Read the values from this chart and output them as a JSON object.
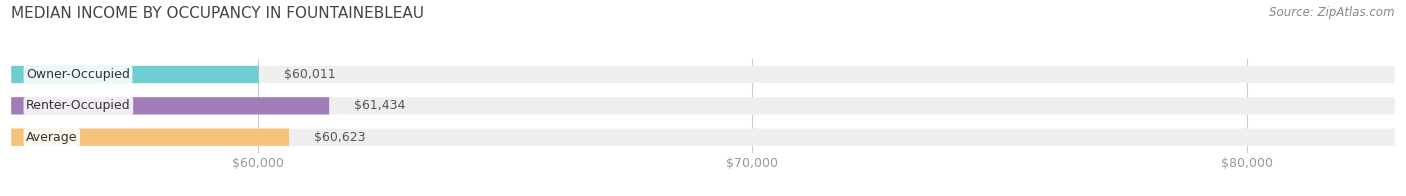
{
  "title": "MEDIAN INCOME BY OCCUPANCY IN FOUNTAINEBLEAU",
  "source": "Source: ZipAtlas.com",
  "categories": [
    "Owner-Occupied",
    "Renter-Occupied",
    "Average"
  ],
  "values": [
    60011,
    61434,
    60623
  ],
  "value_labels": [
    "$60,011",
    "$61,434",
    "$60,623"
  ],
  "bar_colors": [
    "#6dcdd0",
    "#a07db8",
    "#f5c27a"
  ],
  "bar_bg_color": "#efefef",
  "xlim": [
    55000,
    83000
  ],
  "xticks": [
    60000,
    70000,
    80000
  ],
  "xtick_labels": [
    "$60,000",
    "$70,000",
    "$80,000"
  ],
  "title_fontsize": 11,
  "source_fontsize": 8.5,
  "label_fontsize": 9,
  "tick_fontsize": 9,
  "bar_height": 0.55,
  "background_color": "#ffffff"
}
